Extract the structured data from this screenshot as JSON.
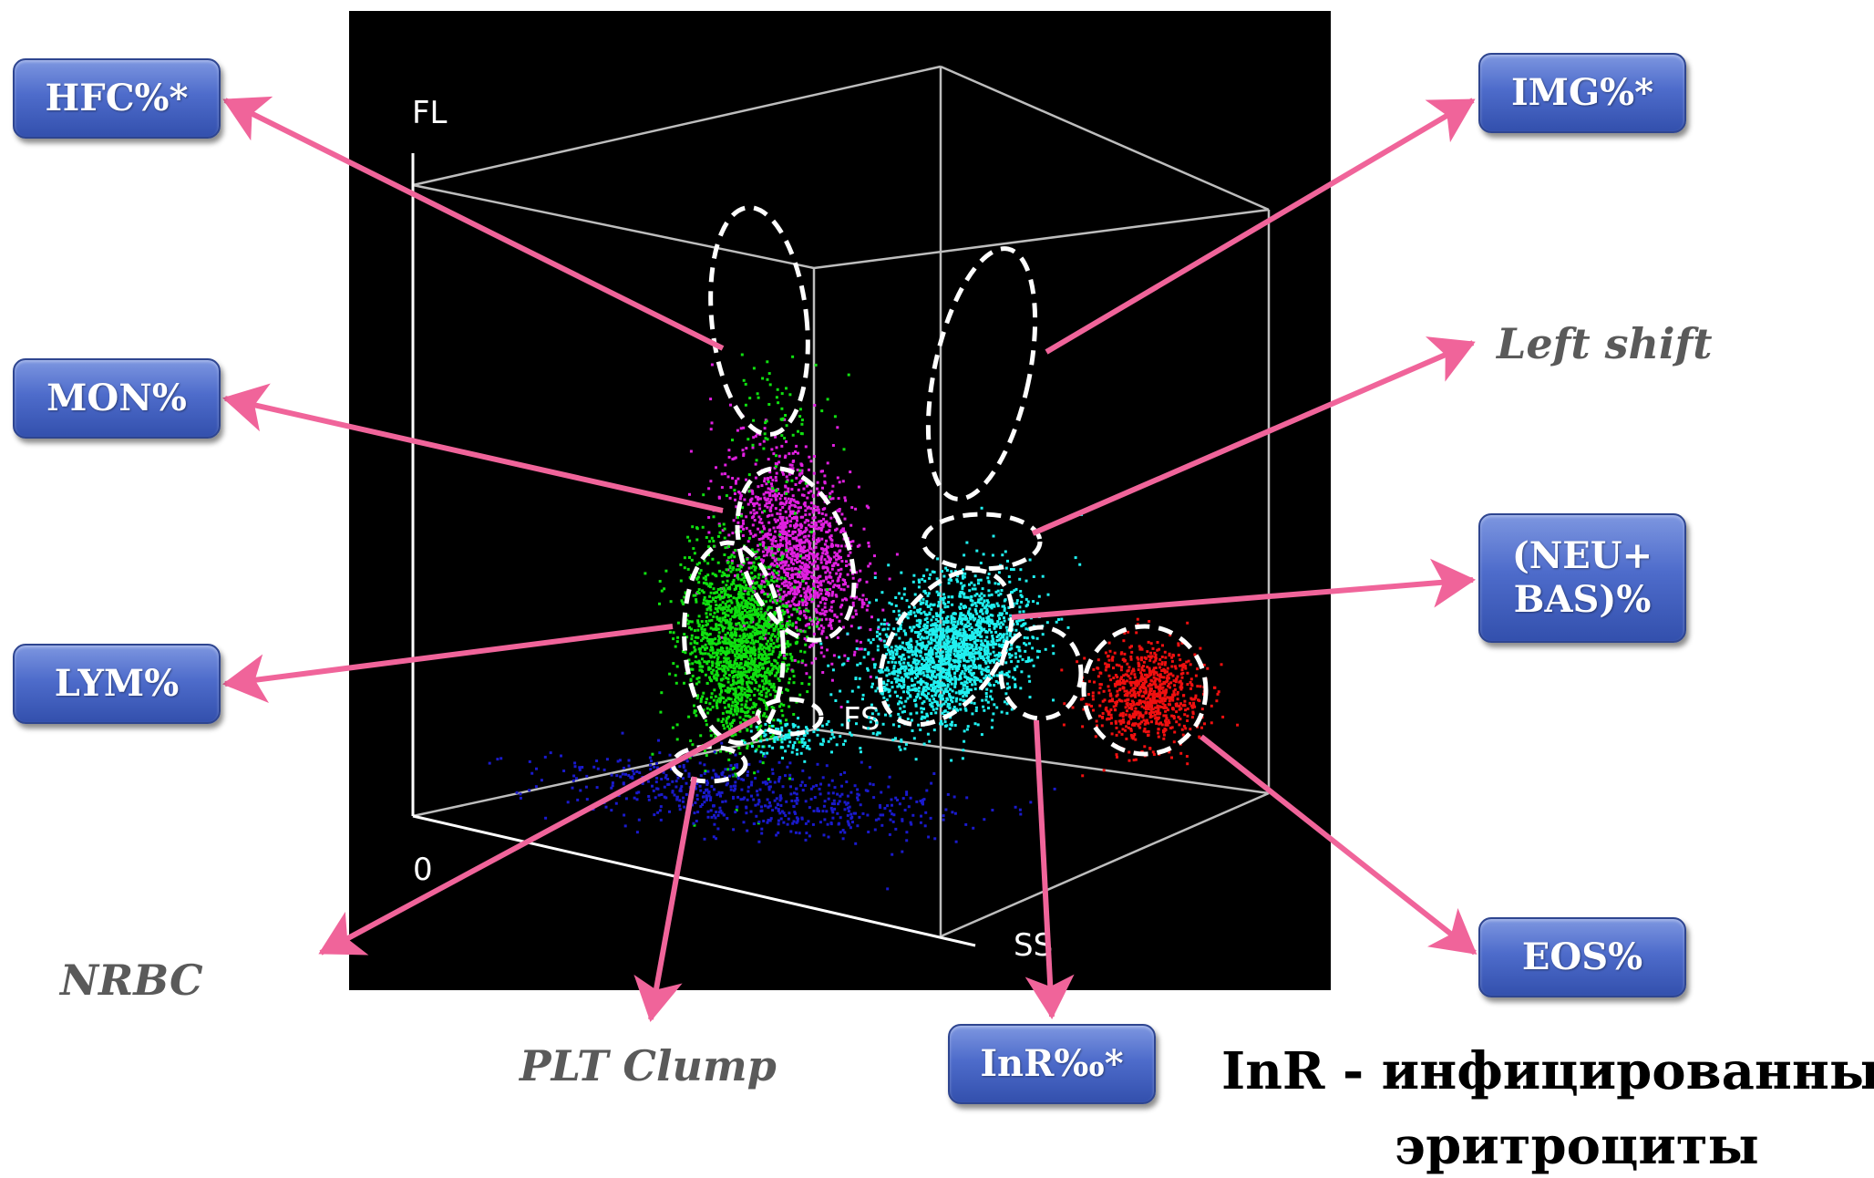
{
  "axes": {
    "fl": "FL",
    "fs": "FS",
    "ss": "SS",
    "origin": "0"
  },
  "boxes": {
    "hfc": "HFC%*",
    "mon": "MON%",
    "lym": "LYM%",
    "img": "IMG%*",
    "neu_bas_line1": "(NEU+",
    "neu_bas_line2": "BAS)%",
    "eos": "EOS%",
    "inr": "InR‰*"
  },
  "labels": {
    "left_shift": "Left shift",
    "nrbc": "NRBC",
    "plt_clump": "PLT Clump"
  },
  "legend": {
    "line1": "InR - инфицированные",
    "line2": "эритроциты"
  },
  "clusters": [
    {
      "name": "monocytes",
      "color": "#e020e0"
    },
    {
      "name": "lymphocytes",
      "color": "#10e010"
    },
    {
      "name": "neutrophils",
      "color": "#20f0f0"
    },
    {
      "name": "eosinophils",
      "color": "#f01010"
    },
    {
      "name": "debris",
      "color": "#1a1acc"
    }
  ],
  "colors": {
    "arrow": "#f0649a",
    "box": "#4e6ccb",
    "plot_background": "#000000",
    "cube_line": "#bdbdbd"
  }
}
